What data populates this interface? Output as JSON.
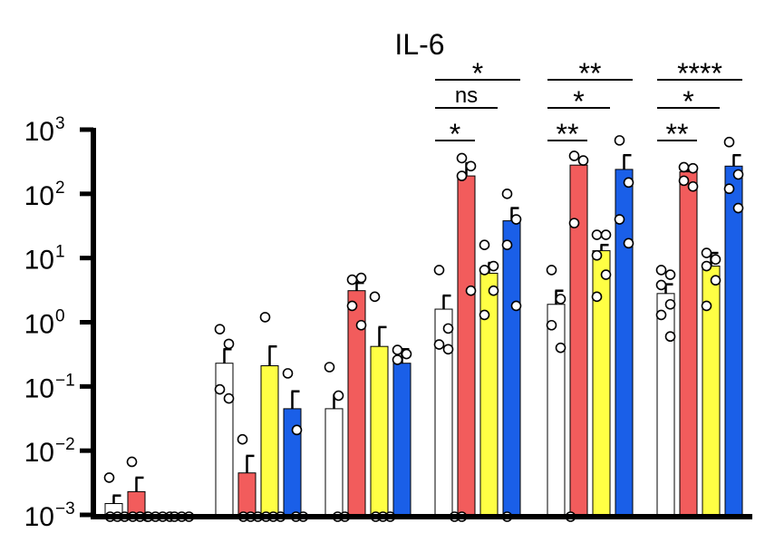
{
  "chart_data": {
    "type": "bar",
    "title": "IL-6",
    "xlabel": "",
    "ylabel": "",
    "y_scale": "log",
    "ylim": [
      0.001,
      1000
    ],
    "y_ticks": [
      {
        "base": "10",
        "exp": "3"
      },
      {
        "base": "10",
        "exp": "2"
      },
      {
        "base": "10",
        "exp": "1"
      },
      {
        "base": "10",
        "exp": "0"
      },
      {
        "base": "10",
        "exp": "−1"
      },
      {
        "base": "10",
        "exp": "−2"
      },
      {
        "base": "10",
        "exp": "−3"
      }
    ],
    "grid": false,
    "legend": "none",
    "colors": [
      "#ffffff",
      "#f25c5c",
      "#ffff44",
      "#1a5fe8"
    ],
    "groups": [
      {
        "bars": [
          {
            "value": 0.0015,
            "err": 0.002,
            "points": [
              0.0038,
              0.001,
              0.001,
              0.001
            ]
          },
          {
            "value": 0.0023,
            "err": 0.0038,
            "points": [
              0.0067,
              0.001,
              0.001,
              0.001
            ]
          },
          {
            "value": 0.001,
            "err": null,
            "points": [
              0.001,
              0.001,
              0.001,
              0.001
            ]
          },
          {
            "value": 0.001,
            "err": null,
            "points": [
              0.001,
              0.001,
              0.001
            ]
          }
        ]
      },
      {
        "bars": [
          {
            "value": 0.23,
            "err": 0.38,
            "points": [
              0.78,
              0.46,
              0.09,
              0.065
            ]
          },
          {
            "value": 0.0045,
            "err": 0.0083,
            "points": [
              0.015,
              0.001,
              0.001,
              0.001
            ]
          },
          {
            "value": 0.21,
            "err": 0.42,
            "points": [
              1.2,
              0.001,
              0.001,
              0.001
            ]
          },
          {
            "value": 0.045,
            "err": 0.084,
            "points": [
              0.16,
              0.021,
              0.001,
              0.001
            ]
          }
        ]
      },
      {
        "bars": [
          {
            "value": 0.045,
            "err": 0.074,
            "points": [
              0.2,
              0.072,
              0.001,
              0.001
            ]
          },
          {
            "value": 3.1,
            "err": 4.1,
            "points": [
              4.6,
              4.9,
              1.8,
              0.9
            ]
          },
          {
            "value": 0.42,
            "err": 0.84,
            "points": [
              2.5,
              0.001,
              0.001,
              0.001
            ]
          },
          {
            "value": 0.23,
            "err": 0.38,
            "points": [
              0.37,
              0.32,
              0.26
            ]
          }
        ]
      },
      {
        "bars": [
          {
            "value": 1.6,
            "err": 2.6,
            "points": [
              6.5,
              0.8,
              0.45,
              0.38,
              0.001,
              0.001
            ]
          },
          {
            "value": 190,
            "err": 300,
            "points": [
              360,
              270,
              190,
              3.1
            ]
          },
          {
            "value": 5.8,
            "err": 8.4,
            "points": [
              16,
              7.5,
              6.5,
              3.1,
              1.3,
              0.001
            ]
          },
          {
            "value": 38,
            "err": 60,
            "points": [
              100,
              40,
              16,
              1.8
            ]
          }
        ]
      },
      {
        "bars": [
          {
            "value": 1.9,
            "err": 3.1,
            "points": [
              6.5,
              2.3,
              0.9,
              0.4,
              0.001
            ]
          },
          {
            "value": 280,
            "err": null,
            "points": [
              390,
              330,
              35
            ]
          },
          {
            "value": 13,
            "err": 16,
            "points": [
              23,
              23,
              11,
              5.5,
              2.5
            ]
          },
          {
            "value": 240,
            "err": 400,
            "points": [
              680,
              150,
              40,
              17
            ]
          }
        ]
      },
      {
        "bars": [
          {
            "value": 2.8,
            "err": 3.9,
            "points": [
              6.5,
              5.5,
              3.8,
              1.9,
              1.3,
              0.6
            ]
          },
          {
            "value": 220,
            "err": 270,
            "points": [
              260,
              250,
              160,
              130
            ]
          },
          {
            "value": 7.5,
            "err": 12,
            "points": [
              12,
              9.5,
              7.5,
              4.5,
              1.8
            ]
          },
          {
            "value": 270,
            "err": 400,
            "points": [
              640,
              200,
              120,
              60
            ]
          }
        ]
      }
    ],
    "significance": [
      {
        "group": 3,
        "from_bar": 0,
        "to_bar": 3,
        "label": "*"
      },
      {
        "group": 3,
        "from_bar": 0,
        "to_bar": 2,
        "label": "ns"
      },
      {
        "group": 3,
        "from_bar": 0,
        "to_bar": 1,
        "label": "*"
      },
      {
        "group": 4,
        "from_bar": 0,
        "to_bar": 3,
        "label": "**"
      },
      {
        "group": 4,
        "from_bar": 0,
        "to_bar": 2,
        "label": "*"
      },
      {
        "group": 4,
        "from_bar": 0,
        "to_bar": 1,
        "label": "**"
      },
      {
        "group": 5,
        "from_bar": 0,
        "to_bar": 3,
        "label": "****"
      },
      {
        "group": 5,
        "from_bar": 0,
        "to_bar": 2,
        "label": "*"
      },
      {
        "group": 5,
        "from_bar": 0,
        "to_bar": 1,
        "label": "**"
      }
    ]
  }
}
